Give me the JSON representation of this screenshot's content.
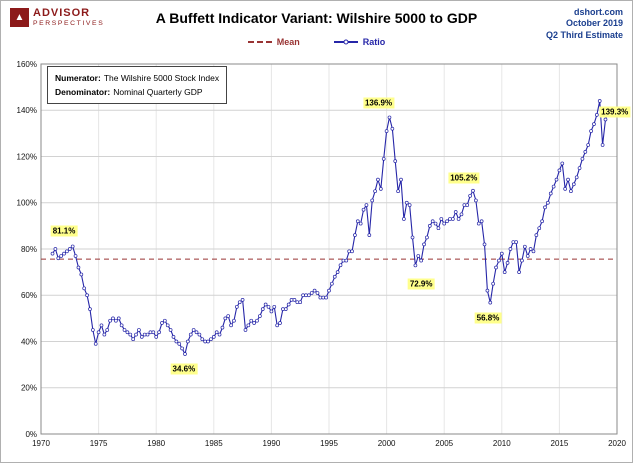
{
  "header": {
    "logo_line1": "ADVISOR",
    "logo_line2": "PERSPECTIVES",
    "logo_mark_glyph": "▲",
    "title": "A Buffett Indicator Variant: Wilshire 5000 to GDP",
    "source_line1": "dshort.com",
    "source_line2": "October 2019",
    "source_line3": "Q2 Third Estimate"
  },
  "legend": {
    "mean_label": "Mean",
    "ratio_label": "Ratio"
  },
  "note": {
    "numerator_label": "Numerator:",
    "numerator_text": "The Wilshire 5000 Stock Index",
    "denominator_label": "Denominator:",
    "denominator_text": "Nominal Quarterly GDP"
  },
  "colors": {
    "logo_maroon": "#8c1a1a",
    "source_blue": "#1b3f8f",
    "ratio_line_blue": "#2626a8",
    "mean_dash_red": "#993333",
    "annotation_yellow": "#ffff8c",
    "grid_gray": "#d2d2d2"
  },
  "chart_data": {
    "type": "line",
    "title": "A Buffett Indicator Variant: Wilshire 5000 to GDP",
    "xlabel": "",
    "ylabel": "",
    "xlim": [
      1970,
      2020
    ],
    "ylim": [
      0,
      160
    ],
    "xtick_step": 5,
    "ytick_step": 20,
    "ytick_suffix": "%",
    "grid": true,
    "legend_position": "top-center",
    "series_name": "Ratio",
    "frequency": "quarterly",
    "start_year": 1971.0,
    "step": 0.25,
    "values": [
      78,
      80,
      76,
      77,
      78,
      79,
      80,
      81.1,
      77,
      72,
      69,
      63,
      60,
      54,
      45,
      39,
      44,
      47,
      43,
      45,
      49,
      50,
      49,
      50,
      47,
      45,
      44,
      43,
      41,
      43,
      45,
      42,
      43,
      43,
      44,
      44,
      42,
      44,
      48,
      49,
      47,
      45,
      42,
      40,
      39,
      37,
      34.6,
      40,
      43,
      45,
      44,
      43,
      41,
      40,
      40,
      41,
      42,
      44,
      43,
      46,
      50,
      51,
      47,
      49,
      55,
      57,
      58,
      45,
      47,
      49,
      48,
      49,
      51,
      54,
      56,
      55,
      53,
      55,
      47,
      48,
      54,
      54,
      56,
      58,
      58,
      57,
      57,
      60,
      60,
      60,
      61,
      62,
      61,
      59,
      59,
      59,
      62,
      65,
      68,
      70,
      73,
      75,
      75,
      79,
      79,
      86,
      92,
      91,
      97,
      99,
      86,
      101,
      105,
      110,
      106,
      119,
      131,
      136.9,
      132,
      118,
      105,
      110,
      93,
      100,
      99,
      85,
      72.9,
      77,
      75,
      82,
      85,
      90,
      92,
      91,
      89,
      93,
      91,
      92,
      93,
      93,
      96,
      93,
      95,
      99,
      99,
      103,
      105.2,
      101,
      91,
      92,
      82,
      62,
      56.8,
      65,
      72,
      75,
      78,
      70,
      74,
      80,
      83,
      83,
      70,
      75,
      81,
      77,
      80,
      79,
      86,
      89,
      92,
      98,
      100,
      104,
      107,
      110,
      114,
      117,
      106,
      110,
      105,
      108,
      111,
      115,
      119,
      122,
      125,
      131,
      134,
      138,
      144,
      125,
      136,
      139.3
    ],
    "mean": 75.6,
    "annotations": [
      {
        "label": "81.1%",
        "x": 1972.0,
        "y": 88
      },
      {
        "label": "34.6%",
        "x": 1982.4,
        "y": 28
      },
      {
        "label": "136.9%",
        "x": 1999.3,
        "y": 143
      },
      {
        "label": "72.9%",
        "x": 2003.0,
        "y": 65
      },
      {
        "label": "105.2%",
        "x": 2006.7,
        "y": 110.5
      },
      {
        "label": "56.8%",
        "x": 2008.8,
        "y": 50
      },
      {
        "label": "139.3%",
        "x": 2019.8,
        "y": 139.3
      }
    ]
  }
}
